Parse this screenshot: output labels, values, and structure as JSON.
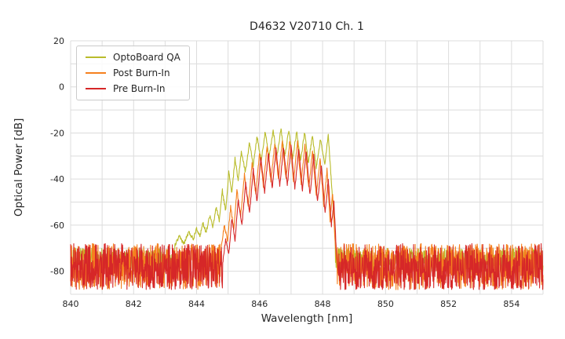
{
  "chart_data": {
    "type": "line",
    "title": "D4632 V20710 Ch. 1",
    "xlabel": "Wavelength [nm]",
    "ylabel": "Optical Power [dB]",
    "xlim": [
      840,
      855
    ],
    "ylim": [
      -90,
      20
    ],
    "x_ticks": [
      840,
      842,
      844,
      846,
      848,
      850,
      852,
      854
    ],
    "y_ticks": [
      20,
      0,
      -20,
      -40,
      -60,
      -80
    ],
    "grid": {
      "on": true,
      "x_step": 1,
      "y_step": 10,
      "color": "#dcdcdc"
    },
    "legend_position": "upper-left",
    "series": [
      {
        "name": "OptoBoard QA",
        "color": "#b9bc2b",
        "noise_floor_db": {
          "top": -70,
          "bottom": -80
        },
        "signal": [
          [
            843.3,
            -69
          ],
          [
            843.45,
            -65
          ],
          [
            843.6,
            -68
          ],
          [
            843.75,
            -63
          ],
          [
            843.9,
            -66
          ],
          [
            844.0,
            -61
          ],
          [
            844.1,
            -65
          ],
          [
            844.2,
            -59
          ],
          [
            844.3,
            -63
          ],
          [
            844.42,
            -56
          ],
          [
            844.52,
            -61
          ],
          [
            844.62,
            -52
          ],
          [
            844.72,
            -58
          ],
          [
            844.82,
            -45
          ],
          [
            844.92,
            -54
          ],
          [
            845.02,
            -37
          ],
          [
            845.12,
            -46
          ],
          [
            845.22,
            -31
          ],
          [
            845.32,
            -41
          ],
          [
            845.42,
            -28
          ],
          [
            845.55,
            -37
          ],
          [
            845.68,
            -24
          ],
          [
            845.8,
            -34
          ],
          [
            845.92,
            -21.5
          ],
          [
            846.05,
            -32
          ],
          [
            846.18,
            -19.5
          ],
          [
            846.3,
            -31
          ],
          [
            846.43,
            -18.8
          ],
          [
            846.55,
            -30
          ],
          [
            846.68,
            -18.3
          ],
          [
            846.8,
            -30
          ],
          [
            846.93,
            -18.6
          ],
          [
            847.05,
            -31
          ],
          [
            847.18,
            -19.2
          ],
          [
            847.3,
            -32
          ],
          [
            847.43,
            -19.8
          ],
          [
            847.55,
            -33
          ],
          [
            847.68,
            -21
          ],
          [
            847.8,
            -35
          ],
          [
            847.93,
            -22.5
          ],
          [
            848.07,
            -34
          ],
          [
            848.18,
            -21
          ],
          [
            848.3,
            -45
          ],
          [
            848.4,
            -65
          ]
        ]
      },
      {
        "name": "Post Burn-In",
        "color": "#f5801e",
        "noise_floor_db": {
          "top": -68,
          "bottom": -88
        },
        "signal": [
          [
            844.78,
            -70
          ],
          [
            844.88,
            -60
          ],
          [
            844.98,
            -67
          ],
          [
            845.08,
            -52
          ],
          [
            845.18,
            -62
          ],
          [
            845.28,
            -45
          ],
          [
            845.4,
            -56
          ],
          [
            845.52,
            -38
          ],
          [
            845.64,
            -52
          ],
          [
            845.76,
            -33
          ],
          [
            845.88,
            -47
          ],
          [
            846.0,
            -28.5
          ],
          [
            846.12,
            -43
          ],
          [
            846.24,
            -26
          ],
          [
            846.36,
            -41
          ],
          [
            846.48,
            -24.5
          ],
          [
            846.6,
            -40
          ],
          [
            846.72,
            -23.5
          ],
          [
            846.84,
            -40
          ],
          [
            846.96,
            -23.2
          ],
          [
            847.08,
            -41
          ],
          [
            847.2,
            -24
          ],
          [
            847.32,
            -42
          ],
          [
            847.44,
            -25.5
          ],
          [
            847.56,
            -44
          ],
          [
            847.68,
            -28
          ],
          [
            847.8,
            -47
          ],
          [
            847.92,
            -31
          ],
          [
            848.04,
            -52
          ],
          [
            848.14,
            -36
          ],
          [
            848.24,
            -58
          ],
          [
            848.32,
            -46
          ],
          [
            848.4,
            -68
          ],
          [
            848.46,
            -78
          ]
        ]
      },
      {
        "name": "Pre Burn-In",
        "color": "#d62728",
        "noise_floor_db": {
          "top": -68,
          "bottom": -88
        },
        "signal": [
          [
            844.82,
            -78
          ],
          [
            844.92,
            -66
          ],
          [
            845.02,
            -73
          ],
          [
            845.12,
            -57
          ],
          [
            845.22,
            -67
          ],
          [
            845.32,
            -49
          ],
          [
            845.44,
            -60
          ],
          [
            845.56,
            -42
          ],
          [
            845.68,
            -55
          ],
          [
            845.8,
            -36
          ],
          [
            845.92,
            -50
          ],
          [
            846.04,
            -31
          ],
          [
            846.16,
            -46
          ],
          [
            846.28,
            -28.5
          ],
          [
            846.4,
            -44
          ],
          [
            846.52,
            -27
          ],
          [
            846.64,
            -43
          ],
          [
            846.76,
            -26.2
          ],
          [
            846.88,
            -43
          ],
          [
            847.0,
            -26
          ],
          [
            847.12,
            -44
          ],
          [
            847.24,
            -26.8
          ],
          [
            847.36,
            -45
          ],
          [
            847.48,
            -28
          ],
          [
            847.6,
            -47
          ],
          [
            847.72,
            -30
          ],
          [
            847.84,
            -50
          ],
          [
            847.96,
            -34
          ],
          [
            848.08,
            -55
          ],
          [
            848.18,
            -40
          ],
          [
            848.28,
            -60
          ],
          [
            848.36,
            -50
          ],
          [
            848.44,
            -72
          ],
          [
            848.5,
            -80
          ]
        ]
      }
    ]
  }
}
